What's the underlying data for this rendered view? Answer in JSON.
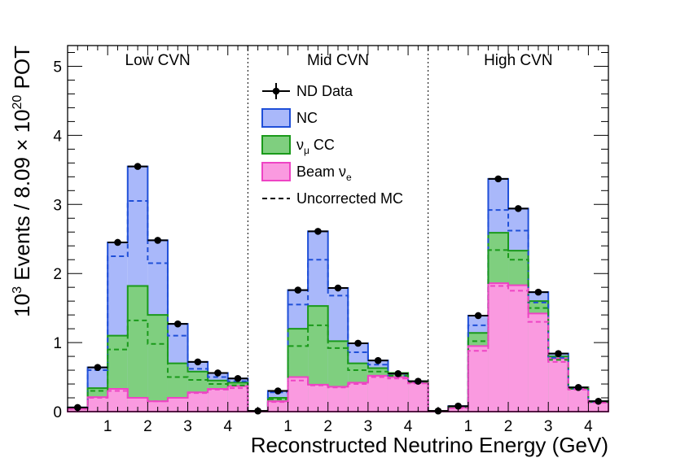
{
  "chart_data": {
    "type": "bar",
    "title": "",
    "xlabel": "Reconstructed Neutrino Energy (GeV)",
    "ylabel": {
      "prefix": "10",
      "prefix_sup": "3",
      "text": " Events / 8.09 × 10",
      "text_sup": "20",
      "suffix": " POT"
    },
    "ylim": [
      0,
      5.3
    ],
    "yticks": [
      "0",
      "1",
      "2",
      "3",
      "4",
      "5"
    ],
    "panels": [
      {
        "label": "Low CVN",
        "bin_edges": [
          0,
          0.5,
          1,
          1.5,
          2,
          2.5,
          3,
          3.5,
          4,
          4.5
        ],
        "xtick_labels": [
          "1",
          "2",
          "3",
          "4"
        ],
        "data": [
          0.06,
          0.64,
          2.45,
          3.55,
          2.48,
          1.27,
          0.72,
          0.56,
          0.48
        ],
        "beam_nue": [
          0.04,
          0.21,
          0.33,
          0.2,
          0.15,
          0.2,
          0.28,
          0.33,
          0.37
        ],
        "numu_cc": [
          0.05,
          0.34,
          1.1,
          1.82,
          1.4,
          0.7,
          0.58,
          0.45,
          0.42
        ],
        "nc": [
          0.06,
          0.64,
          2.45,
          3.55,
          2.48,
          1.27,
          0.72,
          0.56,
          0.48
        ],
        "uncorrected_total": [
          0.05,
          0.6,
          2.25,
          3.05,
          2.15,
          1.1,
          0.62,
          0.5,
          0.44
        ],
        "uncorrected_numu_cc": [
          0.04,
          0.3,
          0.9,
          1.32,
          0.98,
          0.5,
          0.46,
          0.4,
          0.38
        ],
        "uncorrected_beam_nue": [
          0.04,
          0.2,
          0.3,
          0.2,
          0.15,
          0.2,
          0.27,
          0.32,
          0.34
        ]
      },
      {
        "label": "Mid CVN",
        "bin_edges": [
          0,
          0.5,
          1,
          1.5,
          2,
          2.5,
          3,
          3.5,
          4,
          4.5
        ],
        "xtick_labels": [
          "1",
          "2",
          "3",
          "4"
        ],
        "data": [
          0.01,
          0.3,
          1.76,
          2.61,
          1.79,
          0.99,
          0.74,
          0.55,
          0.44
        ],
        "beam_nue": [
          0.01,
          0.15,
          0.5,
          0.39,
          0.36,
          0.42,
          0.52,
          0.5,
          0.42
        ],
        "numu_cc": [
          0.01,
          0.2,
          1.2,
          1.53,
          1.02,
          0.7,
          0.63,
          0.56,
          0.44
        ],
        "nc": [
          0.01,
          0.3,
          1.76,
          2.61,
          1.79,
          0.99,
          0.74,
          0.55,
          0.44
        ],
        "uncorrected_total": [
          0.01,
          0.28,
          1.55,
          2.2,
          1.68,
          0.86,
          0.68,
          0.52,
          0.43
        ],
        "uncorrected_numu_cc": [
          0.01,
          0.18,
          0.95,
          1.25,
          0.92,
          0.6,
          0.58,
          0.52,
          0.43
        ],
        "uncorrected_beam_nue": [
          0.01,
          0.14,
          0.45,
          0.38,
          0.35,
          0.4,
          0.5,
          0.48,
          0.41
        ]
      },
      {
        "label": "High CVN",
        "bin_edges": [
          0,
          0.5,
          1,
          1.5,
          2,
          2.5,
          3,
          3.5,
          4,
          4.5
        ],
        "xtick_labels": [
          "1",
          "2",
          "3",
          "4"
        ],
        "data": [
          0.01,
          0.08,
          1.39,
          3.37,
          2.94,
          1.73,
          0.84,
          0.35,
          0.15
        ],
        "beam_nue": [
          0.01,
          0.06,
          0.95,
          1.86,
          1.83,
          1.42,
          0.77,
          0.34,
          0.14
        ],
        "numu_cc": [
          0.01,
          0.07,
          1.14,
          2.59,
          2.33,
          1.6,
          0.8,
          0.35,
          0.15
        ],
        "nc": [
          0.01,
          0.08,
          1.39,
          3.37,
          2.94,
          1.73,
          0.84,
          0.35,
          0.15
        ],
        "uncorrected_total": [
          0.01,
          0.07,
          1.25,
          2.92,
          2.62,
          1.58,
          0.78,
          0.33,
          0.14
        ],
        "uncorrected_numu_cc": [
          0.01,
          0.06,
          1.02,
          2.34,
          2.2,
          1.5,
          0.75,
          0.33,
          0.14
        ],
        "uncorrected_beam_nue": [
          0.01,
          0.05,
          0.88,
          1.82,
          1.75,
          1.3,
          0.72,
          0.32,
          0.13
        ]
      }
    ],
    "legend": {
      "placement": "top-center",
      "entries": [
        {
          "key": "data",
          "label": "ND Data"
        },
        {
          "key": "nc",
          "label": "NC"
        },
        {
          "key": "numu_cc",
          "label": "ν",
          "sub": "μ",
          "suffix": " CC"
        },
        {
          "key": "beam_nue",
          "label": "Beam ν",
          "sub": "e",
          "suffix": ""
        },
        {
          "key": "uncorrected",
          "label": "Uncorrected MC"
        }
      ]
    },
    "colors": {
      "nc_fill": "#a9b8fa",
      "nc_line": "#1f4fd8",
      "numu_fill": "#7fcf7f",
      "numu_line": "#1a9a1a",
      "nue_fill": "#fa9ae0",
      "nue_line": "#ee44c4",
      "data": "#000000"
    }
  }
}
